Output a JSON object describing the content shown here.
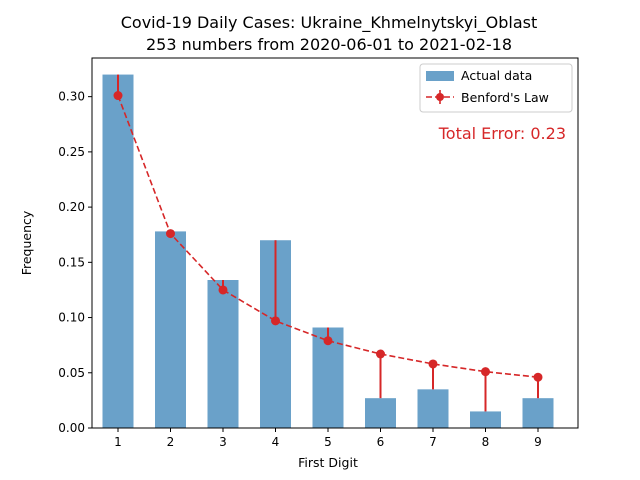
{
  "chart_data": {
    "type": "bar",
    "title": "Covid-19 Daily Cases: Ukraine_Khmelnytskyi_Oblast",
    "subtitle": "253 numbers from 2020-06-01 to 2021-02-18",
    "xlabel": "First Digit",
    "ylabel": "Frequency",
    "categories": [
      "1",
      "2",
      "3",
      "4",
      "5",
      "6",
      "7",
      "8",
      "9"
    ],
    "ylim": [
      0,
      0.335
    ],
    "yticks": [
      0.0,
      0.05,
      0.1,
      0.15,
      0.2,
      0.25,
      0.3
    ],
    "ytick_labels": [
      "0.00",
      "0.05",
      "0.10",
      "0.15",
      "0.20",
      "0.25",
      "0.30"
    ],
    "grid": false,
    "legend_position": "top-right",
    "series": [
      {
        "name": "Actual data",
        "type": "bar",
        "color": "#6aa1c9",
        "values": [
          0.32,
          0.178,
          0.134,
          0.17,
          0.091,
          0.027,
          0.035,
          0.015,
          0.027
        ]
      },
      {
        "name": "Benford's Law",
        "type": "line",
        "style": "dashed",
        "marker": "circle",
        "errorbars": "to-actual",
        "color": "#d62728",
        "values": [
          0.301,
          0.176,
          0.125,
          0.097,
          0.079,
          0.067,
          0.058,
          0.051,
          0.046
        ]
      }
    ],
    "annotations": [
      {
        "text": "Total Error: 0.23",
        "color": "#d62728",
        "position": "top-right"
      }
    ]
  }
}
